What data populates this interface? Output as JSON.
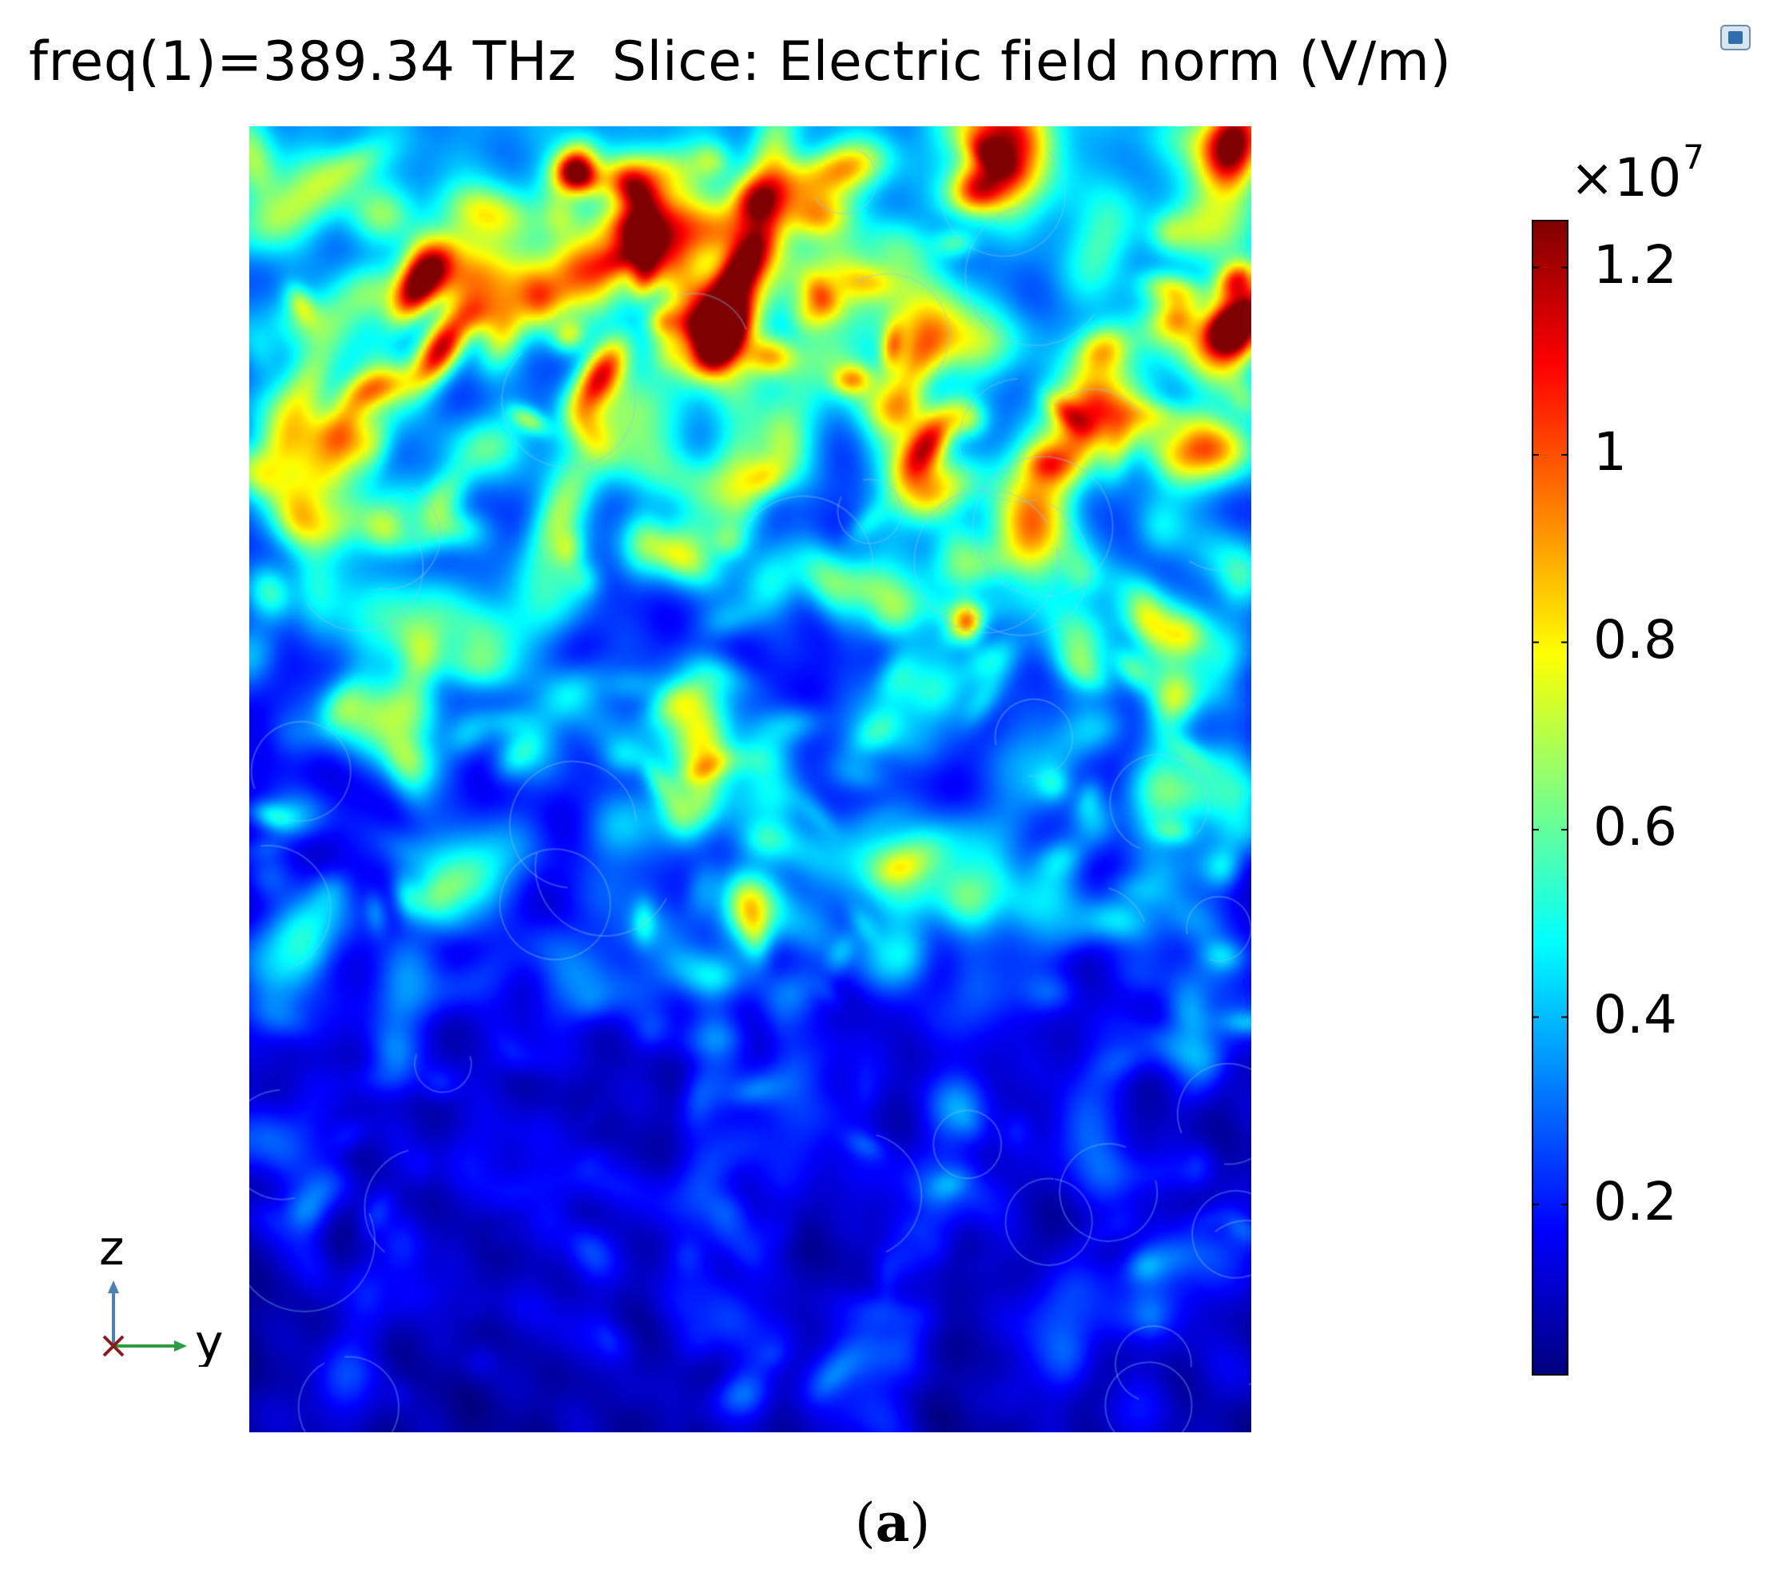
{
  "title": "freq(1)=389.34 THz  Slice: Electric field norm (V/m)",
  "panel_label": {
    "open": "(",
    "letter": "a",
    "close": ")"
  },
  "triad": {
    "z_label": "z",
    "y_label": "y",
    "x_label": "x",
    "z_color": "#4a7fb8",
    "y_color": "#2e9b3e",
    "x_color": "#8b1a1a"
  },
  "colorbar": {
    "exponent_base": "×10",
    "exponent_power": "7",
    "ticks": [
      {
        "label": "1.2",
        "value": 1.2
      },
      {
        "label": "1",
        "value": 1.0
      },
      {
        "label": "0.8",
        "value": 0.8
      },
      {
        "label": "0.6",
        "value": 0.6
      },
      {
        "label": "0.4",
        "value": 0.4
      },
      {
        "label": "0.2",
        "value": 0.2
      }
    ],
    "colormap": "jet",
    "colormap_stops": [
      "#00007f",
      "#0000ff",
      "#007fff",
      "#00ffff",
      "#7fff7f",
      "#ffff00",
      "#ff7f00",
      "#ff0000",
      "#7f0000"
    ]
  },
  "chart_data": {
    "type": "heatmap",
    "title": "freq(1)=389.34 THz  Slice: Electric field norm (V/m)",
    "quantity": "Electric field norm",
    "unit": "V/m",
    "frequency": "389.34 THz",
    "horizontal_axis": "y",
    "vertical_axis": "z",
    "value_range": [
      0.02,
      1.25
    ],
    "value_scale": "x10^7",
    "colorbar_ticks": [
      0.2,
      0.4,
      0.6,
      0.8,
      1.0,
      1.2
    ],
    "pattern": "speckle-like field pattern; field strongest in the upper region and decaying toward the bottom",
    "hotspots": [
      {
        "y": 0.17,
        "z": 0.88,
        "value": 1.15
      },
      {
        "y": 0.19,
        "z": 0.83,
        "value": 1.2
      },
      {
        "y": 0.35,
        "z": 0.81,
        "value": 1.05
      },
      {
        "y": 0.49,
        "z": 0.89,
        "value": 1.15
      },
      {
        "y": 0.47,
        "z": 0.84,
        "value": 1.12
      },
      {
        "y": 0.68,
        "z": 0.76,
        "value": 1.1
      }
    ]
  }
}
